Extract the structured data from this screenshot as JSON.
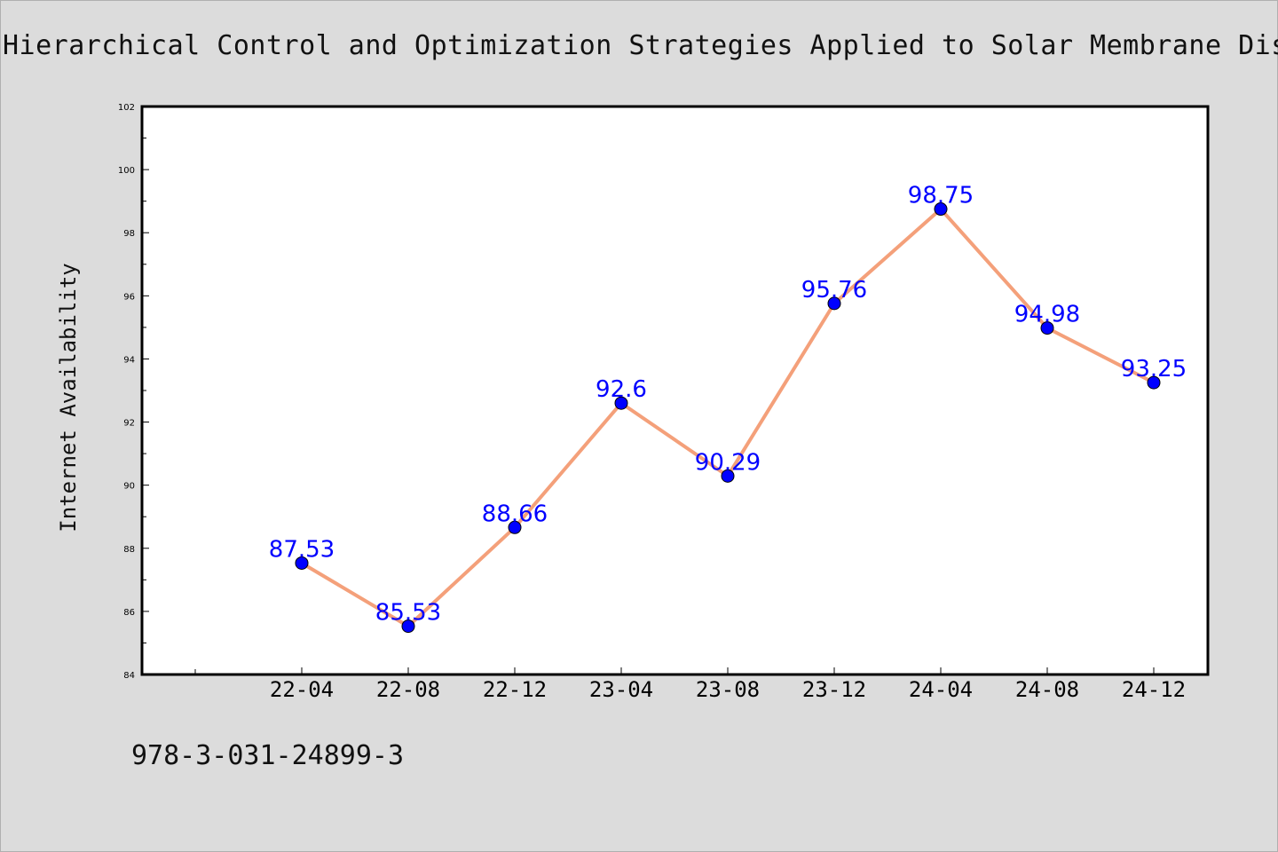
{
  "chart_data": {
    "type": "line",
    "title": "Hierarchical Control and Optimization Strategies Applied to Solar Membrane Disti",
    "ylabel": "Internet Availability",
    "xlabel": "",
    "categories": [
      "22-04",
      "22-08",
      "22-12",
      "23-04",
      "23-08",
      "23-12",
      "24-04",
      "24-08",
      "24-12"
    ],
    "series": [
      {
        "values": [
          87.53,
          85.53,
          88.66,
          92.6,
          90.29,
          95.76,
          98.75,
          94.98,
          93.25
        ],
        "labels": [
          "87.53",
          "85.53",
          "88.66",
          "92.6",
          "90.29",
          "95.76",
          "98.75",
          "94.98",
          "93.25"
        ],
        "line_color": "#f4a07a",
        "marker_color": "#0000ff"
      }
    ],
    "ylim": [
      84,
      102
    ],
    "yticks": [
      "84",
      "86",
      "88",
      "90",
      "92",
      "94",
      "96",
      "98",
      "100",
      "102"
    ],
    "grid": false,
    "legend": "none"
  },
  "footer": {
    "isbn": "978-3-031-24899-3"
  }
}
